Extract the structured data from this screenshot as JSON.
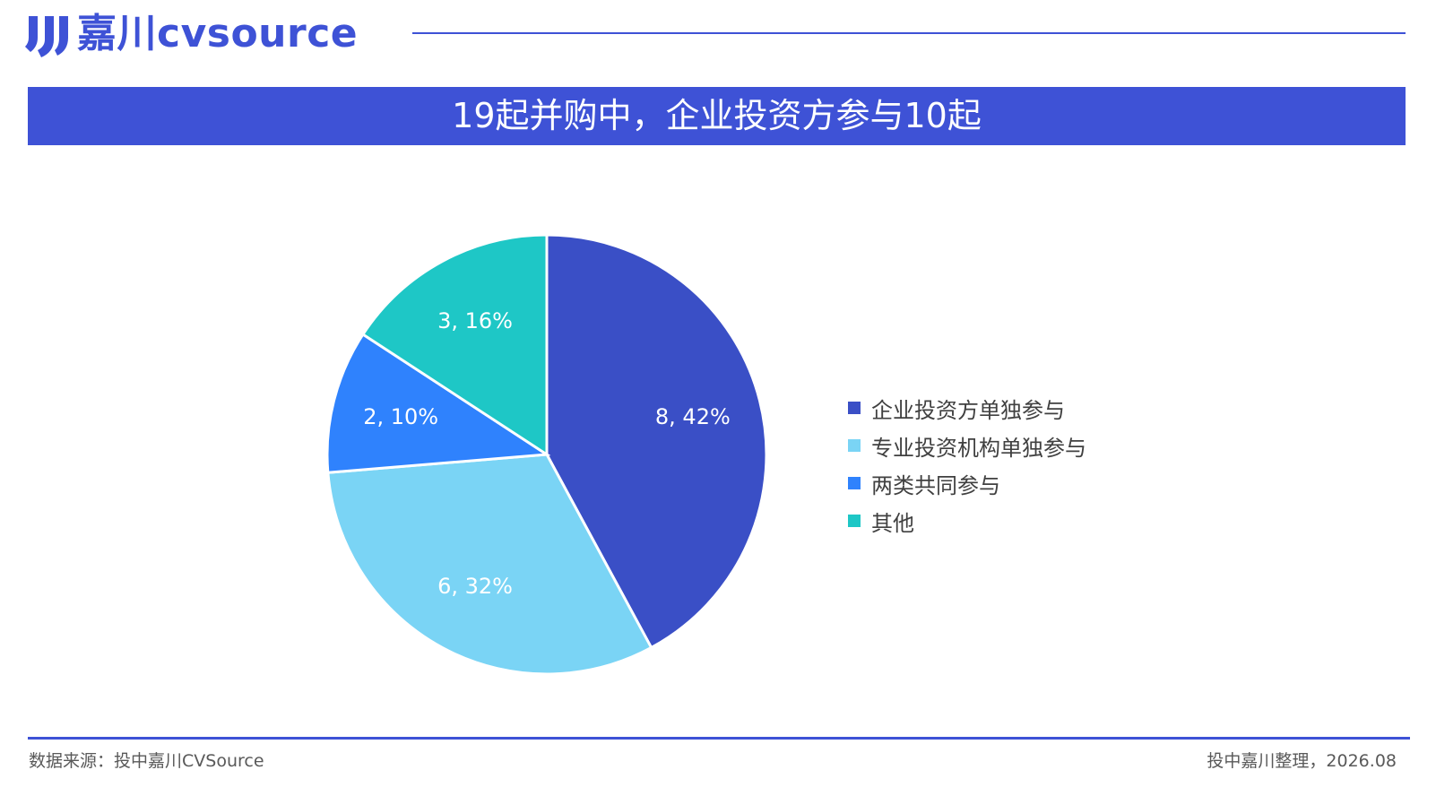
{
  "header": {
    "logo_text": "嘉川cvsource",
    "logo_icon": "brand-mark-icon"
  },
  "title": "19起并购中，企业投资方参与10起",
  "colors": {
    "brand": "#3e52d6",
    "slices": [
      "#3a4fc6",
      "#7ad4f5",
      "#2f82fd",
      "#1ec7c6"
    ]
  },
  "chart_data": {
    "type": "pie",
    "categories": [
      "企业投资方单独参与",
      "专业投资机构单独参与",
      "两类共同参与",
      "其他"
    ],
    "values": [
      8,
      6,
      2,
      3
    ],
    "percents": [
      "42%",
      "32%",
      "10%",
      "16%"
    ],
    "labels": [
      "8, 42%",
      "6, 32%",
      "2, 10%",
      "3, 16%"
    ],
    "legend_position": "right"
  },
  "footer": {
    "source": "数据来源：投中嘉川CVSource",
    "credit": "投中嘉川整理，2026.08"
  }
}
